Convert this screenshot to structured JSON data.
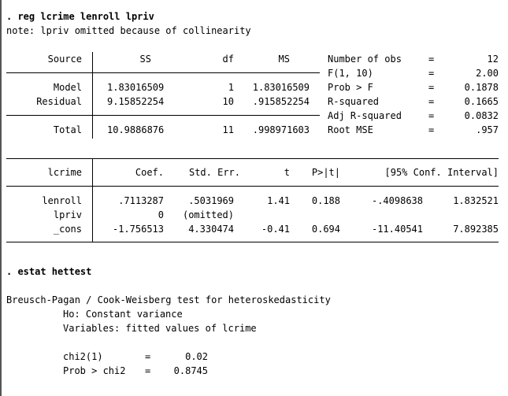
{
  "reg": {
    "command": ". reg lcrime lenroll lpriv",
    "note": "note: lpriv omitted because of collinearity"
  },
  "anova": {
    "headers": {
      "source": "Source",
      "ss": "SS",
      "df": "df",
      "ms": "MS"
    },
    "rows": [
      {
        "source": "Model",
        "ss": "1.83016509",
        "df": "1",
        "ms": "1.83016509"
      },
      {
        "source": "Residual",
        "ss": "9.15852254",
        "df": "10",
        "ms": ".915852254"
      }
    ],
    "total": {
      "source": "Total",
      "ss": "10.9886876",
      "df": "11",
      "ms": ".998971603"
    }
  },
  "fit_stats": [
    {
      "label": "Number of obs",
      "eq": "=",
      "value": "12"
    },
    {
      "label": "F(1, 10)",
      "eq": "=",
      "value": "2.00"
    },
    {
      "label": "Prob > F",
      "eq": "=",
      "value": "0.1878"
    },
    {
      "label": "R-squared",
      "eq": "=",
      "value": "0.1665"
    },
    {
      "label": "Adj R-squared",
      "eq": "=",
      "value": "0.0832"
    },
    {
      "label": "Root MSE",
      "eq": "=",
      "value": ".957"
    }
  ],
  "coef_table": {
    "headers": {
      "depvar": "lcrime",
      "coef": "Coef.",
      "se": "Std. Err.",
      "t": "t",
      "p": "P>|t|",
      "ci": "[95% Conf. Interval]"
    },
    "rows": [
      {
        "var": "lenroll",
        "coef": ".7113287",
        "se": ".5031969",
        "t": "1.41",
        "p": "0.188",
        "ci_low": "-.4098638",
        "ci_high": "1.832521"
      },
      {
        "var": "lpriv",
        "coef": "0",
        "se": "(omitted)",
        "t": "",
        "p": "",
        "ci_low": "",
        "ci_high": ""
      },
      {
        "var": "_cons",
        "coef": "-1.756513",
        "se": "4.330474",
        "t": "-0.41",
        "p": "0.694",
        "ci_low": "-11.40541",
        "ci_high": "7.892385"
      }
    ]
  },
  "hettest": {
    "command": ". estat hettest",
    "title": "Breusch-Pagan / Cook-Weisberg test for heteroskedasticity",
    "ho": "Ho: Constant variance",
    "variables": "Variables: fitted values of lcrime",
    "chi2_label": "chi2(1)",
    "chi2_eq": "=",
    "chi2_value": "0.02",
    "prob_label": "Prob > chi2",
    "prob_eq": "=",
    "prob_value": "0.8745"
  }
}
